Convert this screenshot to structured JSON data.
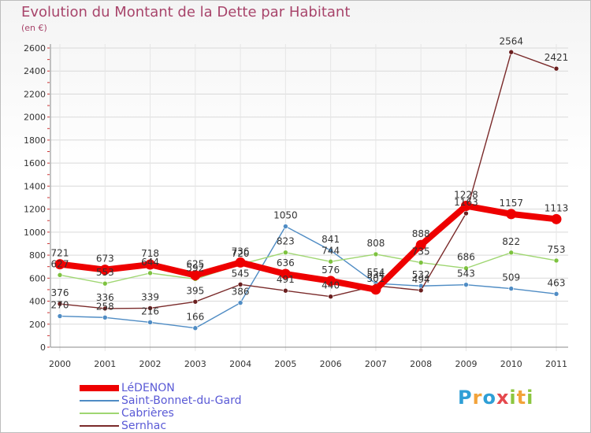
{
  "title": "Evolution du Montant de la Dette par Habitant",
  "subtitle": "(en €)",
  "logo": {
    "letters": [
      {
        "ch": "P",
        "color": "#2f9fd6"
      },
      {
        "ch": "r",
        "color": "#f2a33a"
      },
      {
        "ch": "o",
        "color": "#2f9fd6"
      },
      {
        "ch": "x",
        "color": "#e5484d"
      },
      {
        "ch": "i",
        "color": "#8cc63f"
      },
      {
        "ch": "t",
        "color": "#f2a33a"
      },
      {
        "ch": "i",
        "color": "#8cc63f"
      }
    ]
  },
  "chart_data": {
    "type": "line",
    "categories": [
      "2000",
      "2001",
      "2002",
      "2003",
      "2004",
      "2005",
      "2006",
      "2007",
      "2008",
      "2009",
      "2010",
      "2011"
    ],
    "ylim": [
      0,
      2600
    ],
    "yticks": [
      0,
      200,
      400,
      600,
      800,
      1000,
      1200,
      1400,
      1600,
      1800,
      2000,
      2200,
      2400,
      2600
    ],
    "grid": true,
    "legend_position": "bottom-left",
    "series": [
      {
        "name": "Saint-Bonnet-du-Gard",
        "color": "#4f8cc4",
        "dot": "#4f8cc4",
        "labelColor": "#333333",
        "thick": false,
        "values": [
          270,
          258,
          216,
          166,
          386,
          1050,
          841,
          554,
          532,
          543,
          509,
          463
        ]
      },
      {
        "name": "Cabrières",
        "color": "#9fd671",
        "dot": "#7dc23f",
        "labelColor": "#333333",
        "thick": false,
        "values": [
          627,
          553,
          644,
          592,
          720,
          823,
          744,
          808,
          735,
          686,
          822,
          753
        ]
      },
      {
        "name": "Sernhac",
        "color": "#7a2a2a",
        "dot": "#6a1f1f",
        "labelColor": "#333333",
        "thick": false,
        "values": [
          376,
          336,
          339,
          395,
          545,
          491,
          440,
          534,
          494,
          1163,
          2564,
          2421
        ]
      },
      {
        "name": "LéDENON",
        "color": "#ee0000",
        "dot": "#ee0000",
        "labelColor": "#333333",
        "thick": true,
        "values": [
          721,
          673,
          718,
          625,
          736,
          636,
          576,
          501,
          888,
          1228,
          1157,
          1113
        ]
      }
    ],
    "legend_order": [
      "LéDENON",
      "Saint-Bonnet-du-Gard",
      "Cabrières",
      "Sernhac"
    ]
  }
}
